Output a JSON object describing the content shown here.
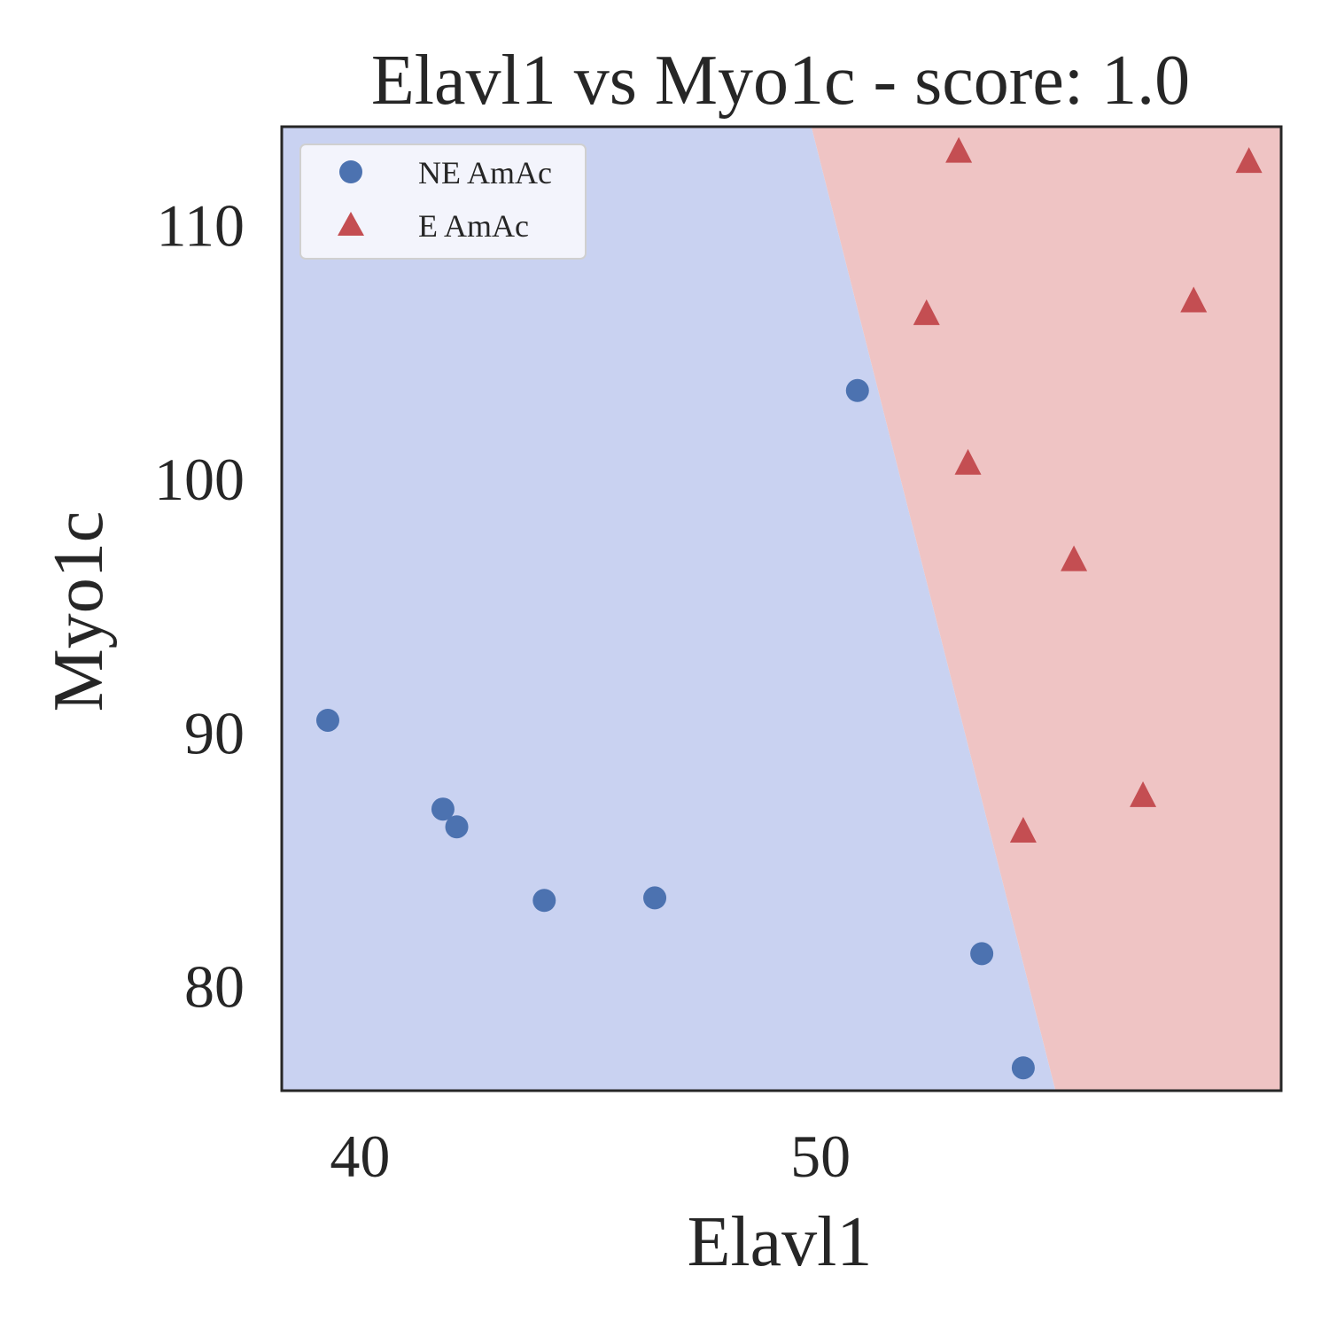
{
  "chart_data": {
    "type": "scatter",
    "title": "Elavl1 vs Myo1c - score: 1.0",
    "xlabel": "Elavl1",
    "ylabel": "Myo1c",
    "xlim": [
      38.3,
      60.0
    ],
    "ylim": [
      75.9,
      113.9
    ],
    "xticks": [
      40,
      50
    ],
    "yticks": [
      80,
      90,
      100,
      110
    ],
    "grid": false,
    "legend_position": "upper-left",
    "decision_regions": {
      "boundary": [
        [
          49.8,
          113.9
        ],
        [
          55.1,
          75.9
        ]
      ],
      "left_region_class": "NE AmAc",
      "right_region_class": "E AmAc",
      "left_color": "#c9d2f1",
      "right_color": "#efc4c4"
    },
    "series": [
      {
        "name": "NE AmAc",
        "marker": "circle",
        "color": "#4c72b0",
        "points": [
          [
            39.3,
            90.5
          ],
          [
            41.8,
            87.0
          ],
          [
            42.1,
            86.3
          ],
          [
            44.0,
            83.4
          ],
          [
            46.4,
            83.5
          ],
          [
            50.8,
            103.5
          ],
          [
            53.5,
            81.3
          ],
          [
            54.4,
            76.8
          ]
        ]
      },
      {
        "name": "E AmAc",
        "marker": "triangle",
        "color": "#c44e52",
        "points": [
          [
            53.0,
            112.9
          ],
          [
            52.3,
            106.5
          ],
          [
            53.2,
            100.6
          ],
          [
            55.5,
            96.8
          ],
          [
            54.4,
            86.1
          ],
          [
            57.0,
            87.5
          ],
          [
            58.1,
            107.0
          ],
          [
            59.3,
            112.5
          ]
        ]
      }
    ]
  }
}
